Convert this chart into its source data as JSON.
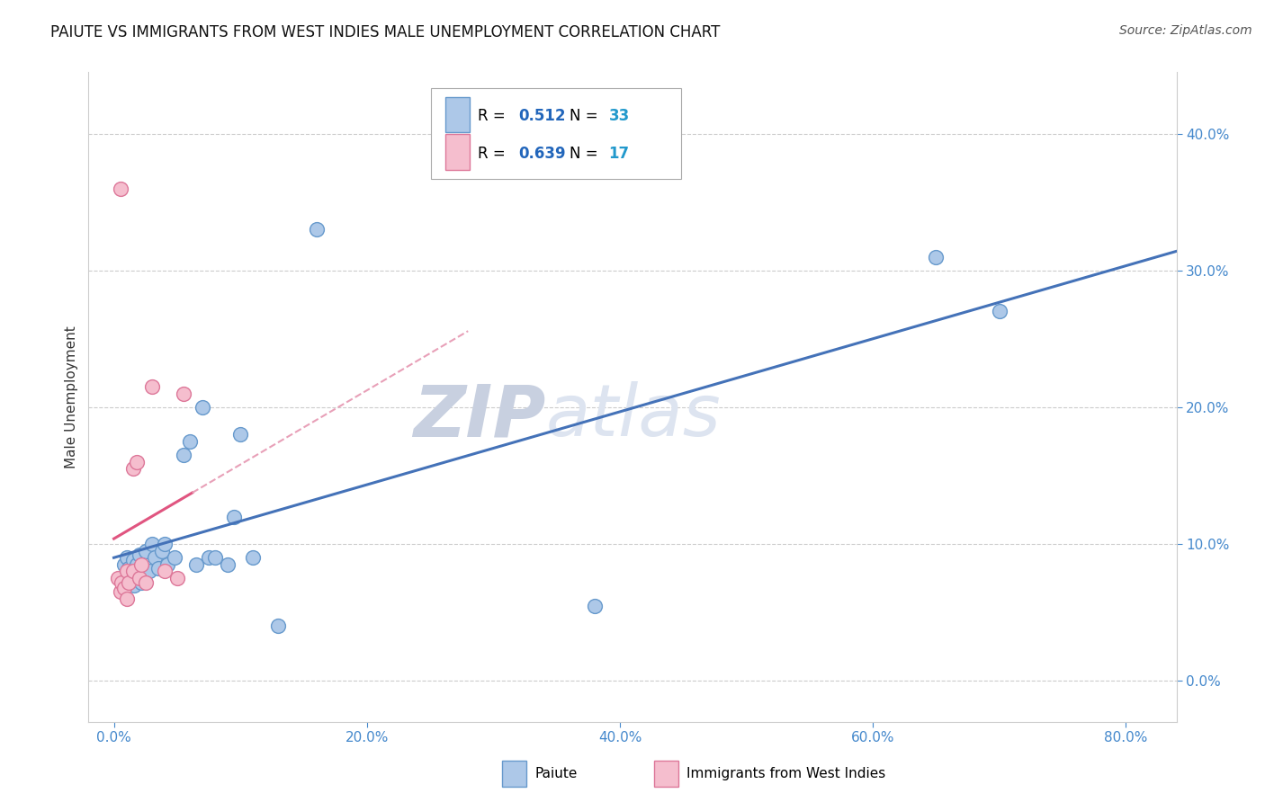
{
  "title": "PAIUTE VS IMMIGRANTS FROM WEST INDIES MALE UNEMPLOYMENT CORRELATION CHART",
  "source": "Source: ZipAtlas.com",
  "ylabel": "Male Unemployment",
  "ylabel_ticks": [
    "0.0%",
    "10.0%",
    "20.0%",
    "30.0%",
    "40.0%"
  ],
  "ylabel_vals": [
    0.0,
    0.1,
    0.2,
    0.3,
    0.4
  ],
  "xlabel_ticks": [
    "0.0%",
    "20.0%",
    "40.0%",
    "60.0%",
    "80.0%"
  ],
  "xlabel_vals": [
    0.0,
    0.2,
    0.4,
    0.6,
    0.8
  ],
  "xlim": [
    -0.02,
    0.84
  ],
  "ylim": [
    -0.03,
    0.445
  ],
  "paiute_R": 0.512,
  "paiute_N": 33,
  "west_indies_R": 0.639,
  "west_indies_N": 17,
  "paiute_color": "#adc8e8",
  "paiute_edge_color": "#6699cc",
  "paiute_line_color": "#4472b8",
  "west_indies_color": "#f5bece",
  "west_indies_edge_color": "#dd7799",
  "west_indies_line_color": "#e05580",
  "west_indies_dash_color": "#e8a0b8",
  "background_color": "#ffffff",
  "grid_color": "#cccccc",
  "watermark_color": "#dde4f0",
  "legend_R_color": "#2266bb",
  "legend_N_color": "#2299cc",
  "paiute_x": [
    0.005,
    0.008,
    0.01,
    0.012,
    0.015,
    0.016,
    0.018,
    0.02,
    0.022,
    0.025,
    0.028,
    0.03,
    0.032,
    0.035,
    0.038,
    0.04,
    0.042,
    0.048,
    0.055,
    0.06,
    0.065,
    0.07,
    0.075,
    0.08,
    0.09,
    0.095,
    0.1,
    0.11,
    0.13,
    0.16,
    0.38,
    0.65,
    0.7
  ],
  "paiute_y": [
    0.075,
    0.085,
    0.09,
    0.082,
    0.088,
    0.07,
    0.085,
    0.092,
    0.072,
    0.095,
    0.08,
    0.1,
    0.09,
    0.082,
    0.095,
    0.1,
    0.085,
    0.09,
    0.165,
    0.175,
    0.085,
    0.2,
    0.09,
    0.09,
    0.085,
    0.12,
    0.18,
    0.09,
    0.04,
    0.33,
    0.055,
    0.31,
    0.27
  ],
  "west_indies_x": [
    0.003,
    0.005,
    0.006,
    0.008,
    0.01,
    0.01,
    0.012,
    0.015,
    0.015,
    0.018,
    0.02,
    0.022,
    0.025,
    0.03,
    0.04,
    0.05,
    0.055
  ],
  "west_indies_y": [
    0.075,
    0.065,
    0.072,
    0.068,
    0.06,
    0.08,
    0.072,
    0.08,
    0.155,
    0.16,
    0.075,
    0.085,
    0.072,
    0.215,
    0.08,
    0.075,
    0.21
  ],
  "west_indies_outlier_x": [
    0.005
  ],
  "west_indies_outlier_y": [
    0.36
  ]
}
